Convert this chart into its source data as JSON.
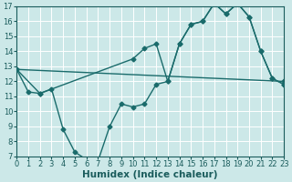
{
  "xlabel": "Humidex (Indice chaleur)",
  "background_color": "#cce8e8",
  "grid_color": "#b8d8d8",
  "line_color": "#1a6b6b",
  "xlim": [
    0,
    23
  ],
  "ylim": [
    7,
    17
  ],
  "xticks": [
    0,
    1,
    2,
    3,
    4,
    5,
    6,
    7,
    8,
    9,
    10,
    11,
    12,
    13,
    14,
    15,
    16,
    17,
    18,
    19,
    20,
    21,
    22,
    23
  ],
  "yticks": [
    7,
    8,
    9,
    10,
    11,
    12,
    13,
    14,
    15,
    16,
    17
  ],
  "line1_x": [
    0,
    1,
    2,
    10,
    11,
    12,
    13,
    14,
    15,
    16,
    17,
    18,
    19,
    20,
    21,
    22,
    23
  ],
  "line1_y": [
    12.8,
    11.3,
    11.2,
    13.5,
    14.2,
    14.5,
    12.0,
    14.5,
    15.8,
    16.0,
    17.2,
    16.5,
    17.2,
    16.3,
    14.0,
    12.2,
    11.8
  ],
  "line2_x": [
    0,
    2,
    3,
    4,
    5,
    6,
    7,
    8,
    9,
    10,
    11,
    12,
    13,
    14,
    15,
    16,
    17,
    18,
    19,
    20,
    21,
    22,
    23
  ],
  "line2_y": [
    12.8,
    11.2,
    11.5,
    8.8,
    7.3,
    6.8,
    6.7,
    9.0,
    10.5,
    10.3,
    10.5,
    11.8,
    12.0,
    14.5,
    15.8,
    16.0,
    17.2,
    16.5,
    17.2,
    16.3,
    14.0,
    12.2,
    11.8
  ],
  "line3_x": [
    0,
    23
  ],
  "line3_y": [
    12.8,
    12.0
  ],
  "marker_size": 2.5,
  "line_width": 1.0,
  "font_color": "#1a5c5c",
  "tick_fontsize": 6,
  "label_fontsize": 7.5
}
